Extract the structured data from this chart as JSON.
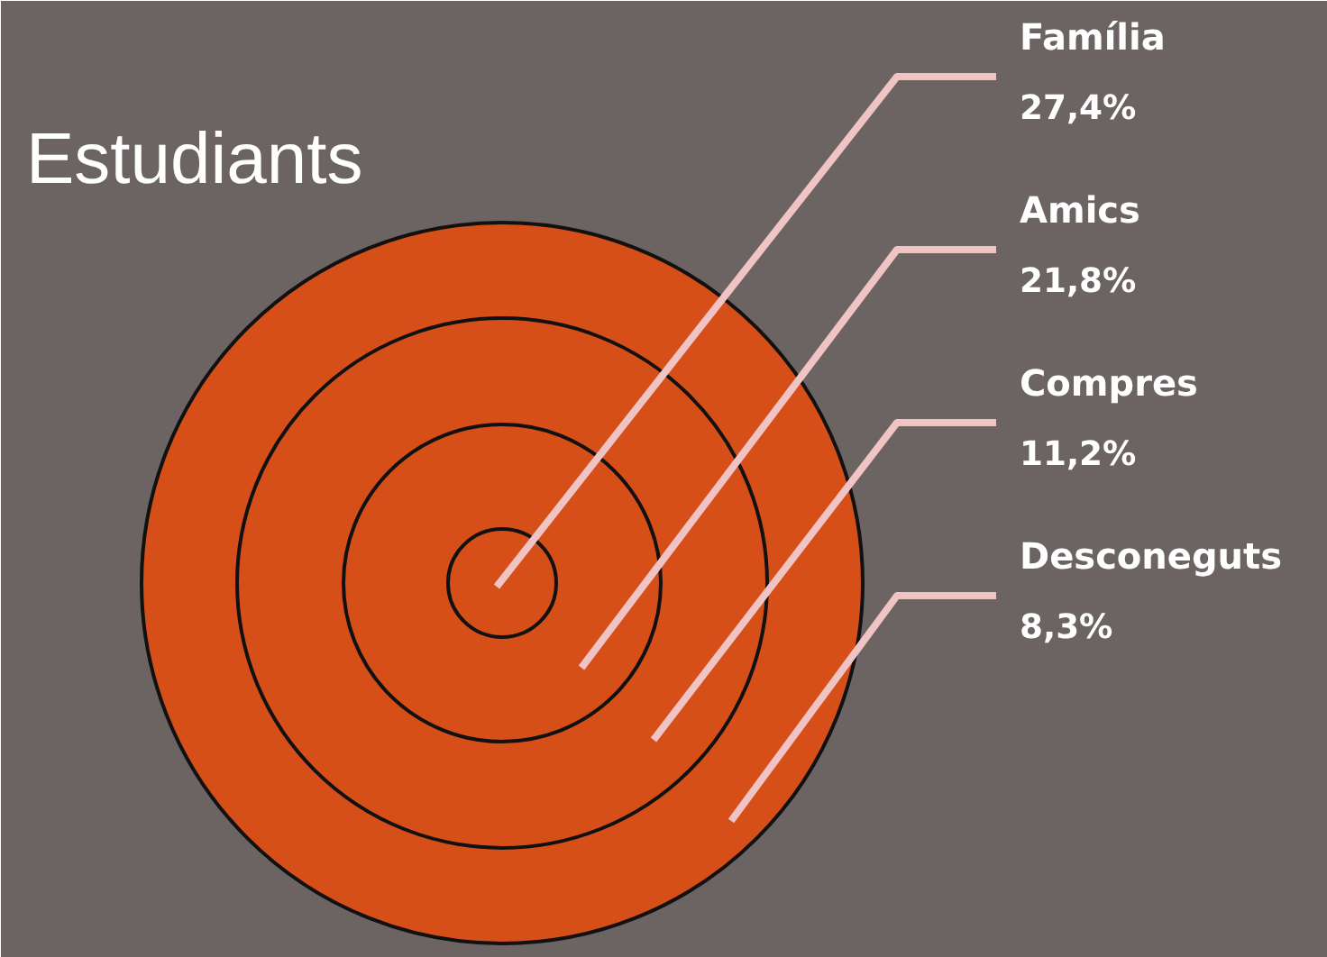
{
  "chart_data": {
    "type": "other",
    "title": "Estudiants",
    "color": "#d64f19",
    "categories": [
      "Família",
      "Amics",
      "Compres",
      "Desconeguts"
    ],
    "values": [
      27.4,
      21.8,
      11.2,
      8.3
    ],
    "value_labels": [
      "27,4%",
      "21,8%",
      "11,2%",
      "8,3%"
    ]
  }
}
